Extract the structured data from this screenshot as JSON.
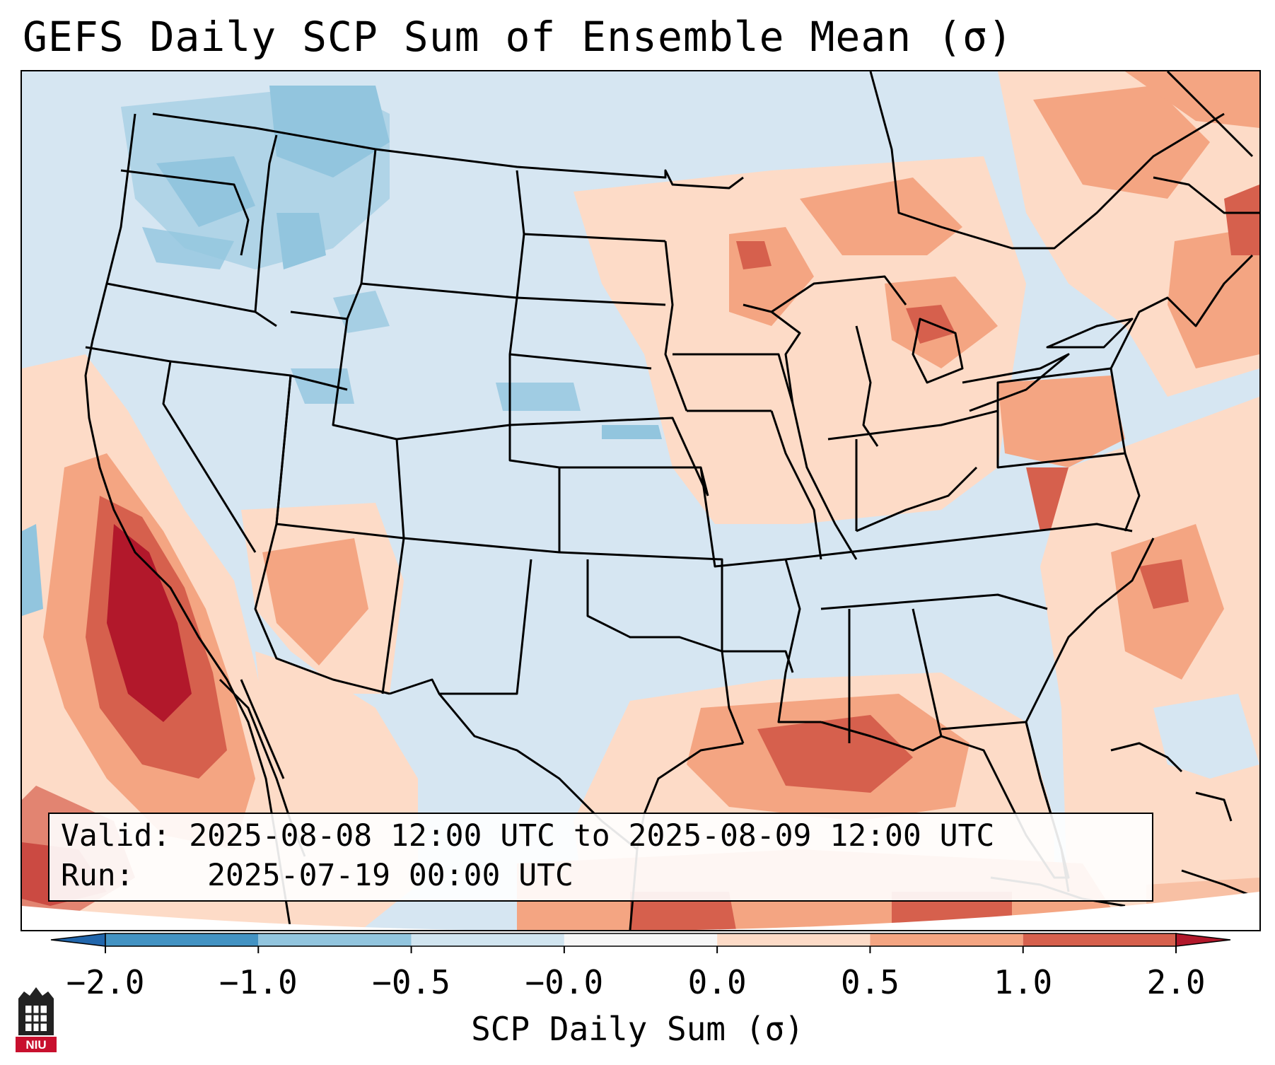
{
  "title": "GEFS Daily SCP Sum of Ensemble Mean (σ)",
  "info": {
    "valid_label": "Valid:",
    "valid_value": "2025-08-08 12:00 UTC to 2025-08-09 12:00 UTC",
    "run_label": "Run:",
    "run_value": "2025-07-19 00:00 UTC"
  },
  "colorbar": {
    "label": "SCP Daily Sum (σ)",
    "ticks": [
      "−2.0",
      "−1.0",
      "−0.5",
      "−0.0",
      "0.0",
      "0.5",
      "1.0",
      "2.0"
    ],
    "bins": [
      {
        "range": "-2.0 to -1.0",
        "color": "#4393c3"
      },
      {
        "range": "-1.0 to -0.5",
        "color": "#92c5de"
      },
      {
        "range": "-0.5 to -0.0",
        "color": "#d1e5f0"
      },
      {
        "range": "-0.0 to 0.0",
        "color": "#f7f7f7"
      },
      {
        "range": "0.0 to 0.5",
        "color": "#fddbc7"
      },
      {
        "range": "0.5 to 1.0",
        "color": "#f4a582"
      },
      {
        "range": "1.0 to 2.0",
        "color": "#d6604d"
      }
    ],
    "under_color": "#2166ac",
    "over_color": "#b2182b"
  },
  "logo": {
    "text": "NIU",
    "color": "#c8102e"
  }
}
